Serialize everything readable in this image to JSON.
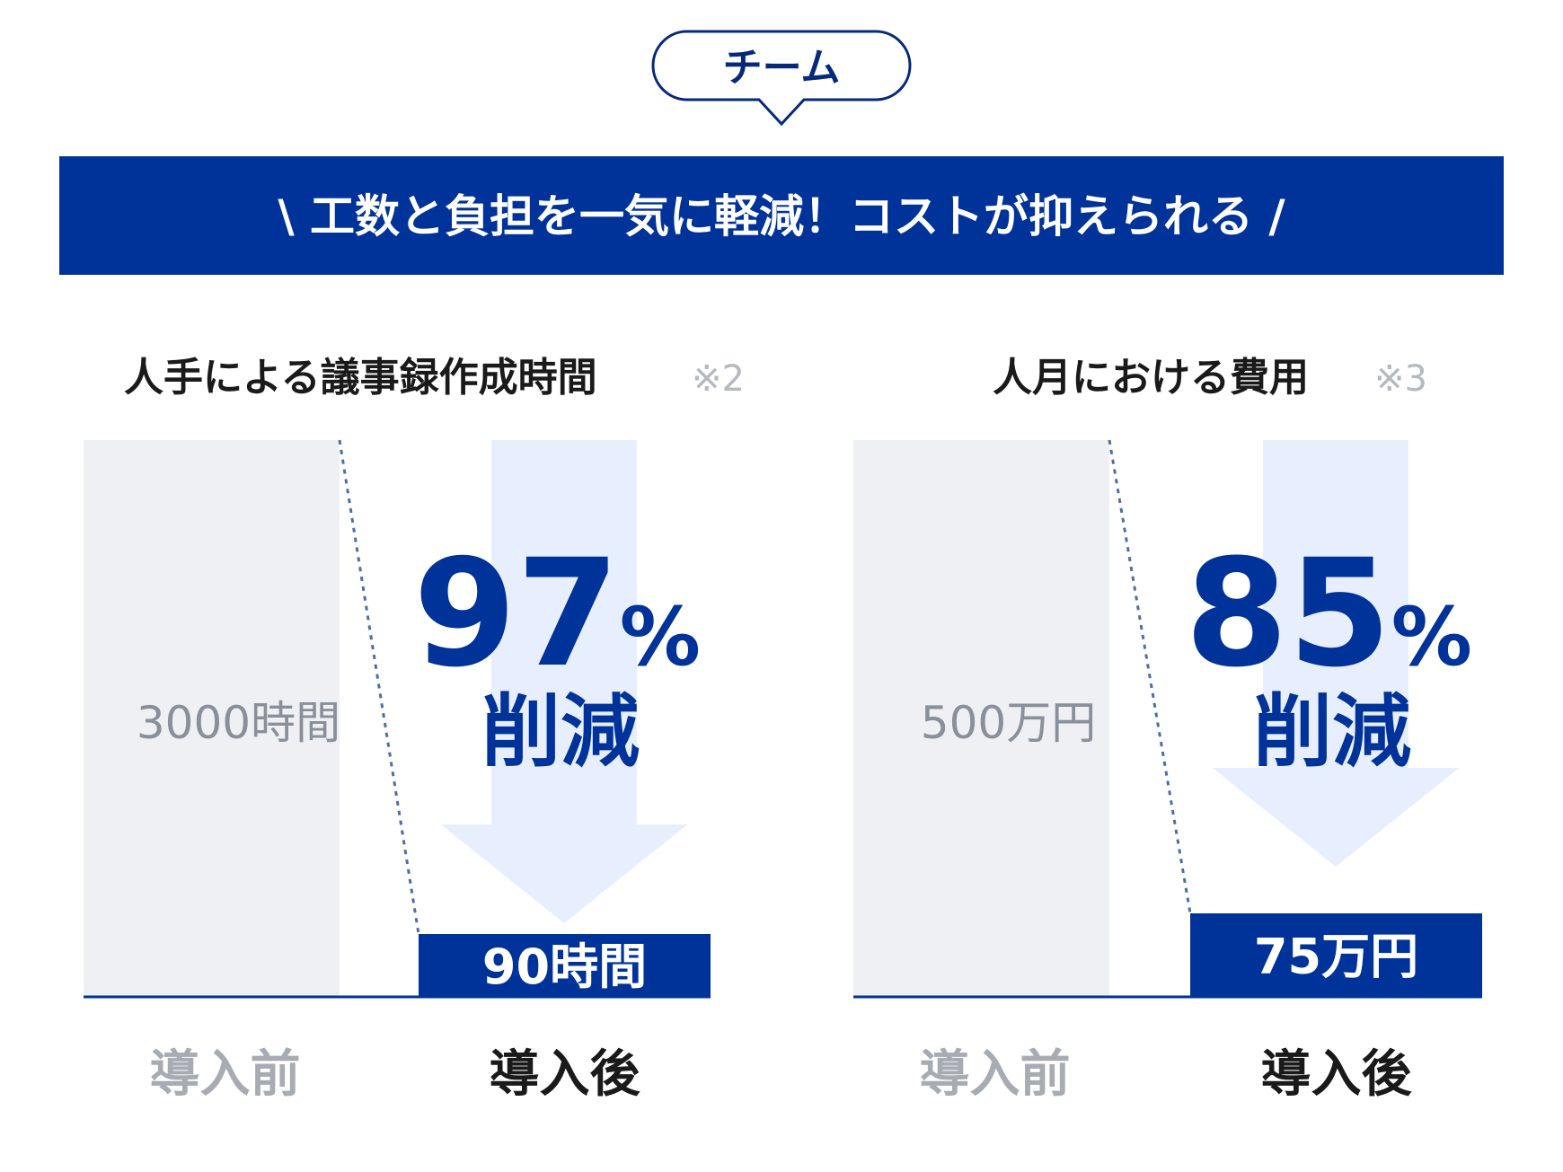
{
  "colors": {
    "navy": "#003399",
    "dark_navy": "#062a7a",
    "before_bar": "#eef0f4",
    "arrow": "#e7efff",
    "gray_text": "#8a9099",
    "label_gray": "#a7abb2",
    "dark_text": "#1a1a1a",
    "dotted": "#4a6fa8"
  },
  "bubble": {
    "label": "チーム"
  },
  "banner": {
    "text": "\\ 工数と負担を一気に軽減！コストが抑えられる /"
  },
  "chart_data": [
    {
      "type": "bar",
      "title": "人手による議事録作成時間",
      "note": "※2",
      "categories": [
        "導入前",
        "導入後"
      ],
      "values": [
        3000,
        90
      ],
      "value_labels": [
        "3000時間",
        "90時間"
      ],
      "reduction": {
        "number": "97",
        "unit": "%",
        "word": "削減"
      }
    },
    {
      "type": "bar",
      "title": "人月における費用",
      "note": "※3",
      "categories": [
        "導入前",
        "導入後"
      ],
      "values": [
        500,
        75
      ],
      "value_labels": [
        "500万円",
        "75万円"
      ],
      "reduction": {
        "number": "85",
        "unit": "%",
        "word": "削減"
      }
    }
  ]
}
